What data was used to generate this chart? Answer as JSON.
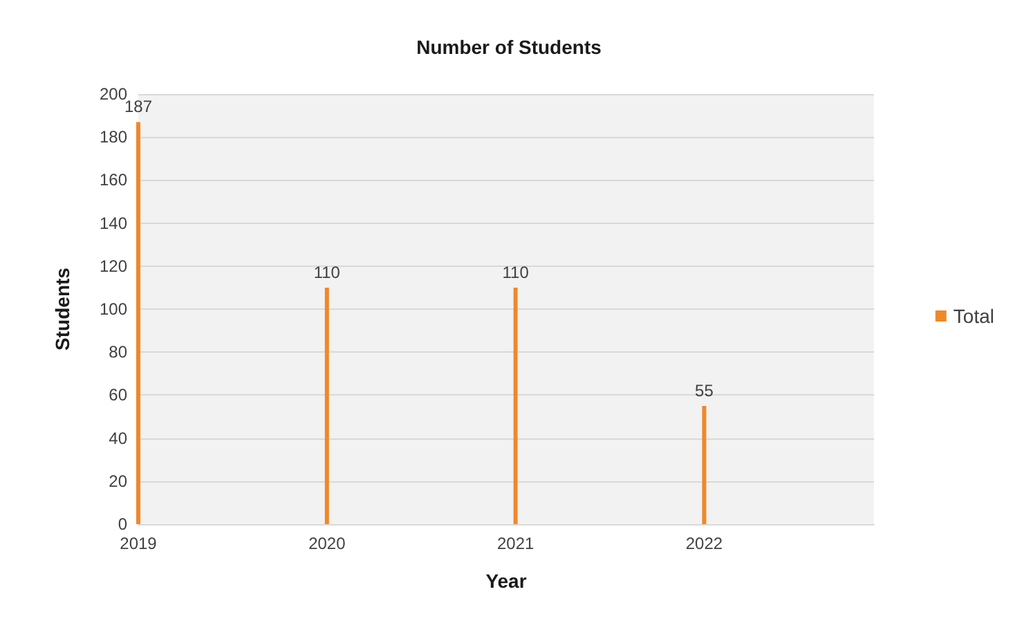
{
  "chart_data": {
    "type": "bar",
    "title": "Number of Students",
    "xlabel": "Year",
    "ylabel": "Students",
    "x": [
      2019,
      2020,
      2021,
      2022
    ],
    "series": [
      {
        "name": "Total",
        "color": "#f0882a",
        "values": [
          187,
          110,
          110,
          55
        ]
      }
    ],
    "xlim": [
      2019,
      2022.9
    ],
    "xticks": [
      2019,
      2020,
      2021,
      2022
    ],
    "ylim": [
      0,
      200
    ],
    "yticks": [
      0,
      20,
      40,
      60,
      80,
      100,
      120,
      140,
      160,
      180,
      200
    ],
    "grid": "y",
    "legend": "right",
    "data_labels": true
  }
}
